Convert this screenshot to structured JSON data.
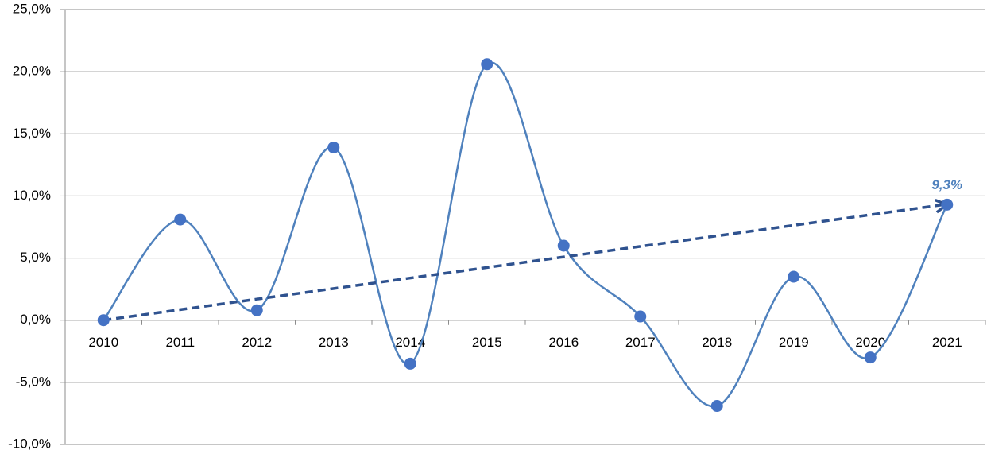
{
  "chart_data": {
    "type": "line",
    "categories": [
      "2010",
      "2011",
      "2012",
      "2013",
      "2014",
      "2015",
      "2016",
      "2017",
      "2018",
      "2019",
      "2020",
      "2021"
    ],
    "series": [
      {
        "color": "#4f81bd",
        "values": [
          0,
          8.1,
          0.8,
          13.9,
          -3.5,
          20.6,
          6.0,
          0.3,
          -6.9,
          3.5,
          -3.0,
          9.3
        ],
        "value_labels": [
          null,
          null,
          null,
          null,
          null,
          null,
          null,
          null,
          null,
          null,
          null,
          "9,3%"
        ]
      }
    ],
    "ylim": [
      -10,
      25
    ],
    "yticks": [
      {
        "value": -10,
        "label": "-10,0%"
      },
      {
        "value": -5,
        "label": "-5,0%"
      },
      {
        "value": 0,
        "label": "0,0%"
      },
      {
        "value": 5,
        "label": "5,0%"
      },
      {
        "value": 10,
        "label": "10,0%"
      },
      {
        "value": 15,
        "label": "15,0%"
      },
      {
        "value": 20,
        "label": "20,0%"
      },
      {
        "value": 25,
        "label": "25,0%"
      }
    ],
    "grid": true,
    "smooth": true,
    "trend_arrow": true,
    "trend_color": "#2f528f"
  }
}
